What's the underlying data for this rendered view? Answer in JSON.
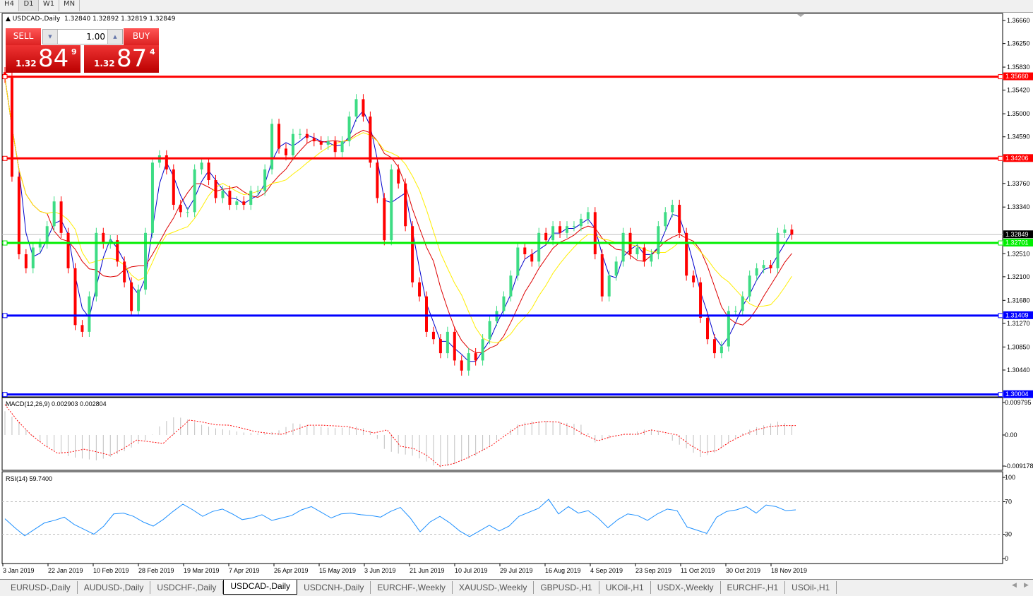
{
  "toolbar": {
    "timeframes": [
      "H4",
      "D1",
      "W1",
      "MN"
    ],
    "active": "D1"
  },
  "header": {
    "symbol": "USDCAD-,Daily",
    "ohlc": "1.32840 1.32892 1.32819 1.32849"
  },
  "trade_panel": {
    "sell_label": "SELL",
    "buy_label": "BUY",
    "lot": "1.00",
    "sell_price": {
      "prefix": "1.32",
      "big": "84",
      "sup": "9"
    },
    "buy_price": {
      "prefix": "1.32",
      "big": "87",
      "sup": "4"
    }
  },
  "colors": {
    "bull": "#3ddc84",
    "bear": "#ff0000",
    "ma_fast": "#0000cc",
    "ma_mid": "#dd0000",
    "ma_slow": "#ffee00",
    "rsi": "#1e90ff",
    "macd_hist": "#c0c0c0",
    "macd_signal": "#ff0000"
  },
  "chart_data": [
    {
      "type": "candlestick",
      "title": "USDCAD-,Daily",
      "ylim": [
        1.298,
        1.3675
      ],
      "y_ticks": [
        "1.36660",
        "1.36250",
        "1.35830",
        "1.35420",
        "1.35000",
        "1.34590",
        "1.33760",
        "1.33340",
        "1.32510",
        "1.32100",
        "1.31680",
        "1.31270",
        "1.30850",
        "1.30440"
      ],
      "x_ticks": [
        "3 Jan 2019",
        "22 Jan 2019",
        "10 Feb 2019",
        "28 Feb 2019",
        "19 Mar 2019",
        "7 Apr 2019",
        "26 Apr 2019",
        "15 May 2019",
        "3 Jun 2019",
        "21 Jun 2019",
        "10 Jul 2019",
        "29 Jul 2019",
        "16 Aug 2019",
        "4 Sep 2019",
        "23 Sep 2019",
        "11 Oct 2019",
        "30 Oct 2019",
        "18 Nov 2019"
      ],
      "closes": [
        1.3564,
        1.3388,
        1.325,
        1.3225,
        1.3262,
        1.3269,
        1.33,
        1.3344,
        1.3288,
        1.3225,
        1.3124,
        1.3112,
        1.3175,
        1.3288,
        1.3269,
        1.3275,
        1.3237,
        1.32,
        1.3149,
        1.3187,
        1.3288,
        1.3413,
        1.3426,
        1.3401,
        1.3338,
        1.3325,
        1.3325,
        1.3401,
        1.3413,
        1.3382,
        1.335,
        1.3363,
        1.3338,
        1.3344,
        1.3338,
        1.3363,
        1.3363,
        1.3401,
        1.3482,
        1.3438,
        1.3426,
        1.3464,
        1.3464,
        1.3457,
        1.3451,
        1.3445,
        1.3451,
        1.3432,
        1.3451,
        1.3495,
        1.3526,
        1.3495,
        1.3413,
        1.335,
        1.3275,
        1.3401,
        1.3376,
        1.33,
        1.32,
        1.3175,
        1.3112,
        1.3099,
        1.3074,
        1.3112,
        1.3061,
        1.3043,
        1.3074,
        1.3061,
        1.3099,
        1.3131,
        1.3149,
        1.3175,
        1.3212,
        1.3262,
        1.325,
        1.3237,
        1.3288,
        1.3275,
        1.33,
        1.3288,
        1.33,
        1.33,
        1.3313,
        1.3325,
        1.325,
        1.3175,
        1.3212,
        1.3237,
        1.3288,
        1.325,
        1.3262,
        1.3237,
        1.325,
        1.33,
        1.3325,
        1.3338,
        1.3288,
        1.3212,
        1.32,
        1.3137,
        1.3099,
        1.3074,
        1.3086,
        1.3149,
        1.3149,
        1.3175,
        1.3212,
        1.3225,
        1.3231,
        1.3225,
        1.3288,
        1.3294,
        1.32849
      ],
      "hlines": [
        {
          "value": "1.35660",
          "color": "#ff0000"
        },
        {
          "value": "1.34206",
          "color": "#ff0000"
        },
        {
          "value": "1.32701",
          "color": "#00ee00"
        },
        {
          "value": "1.31409",
          "color": "#0000ff"
        },
        {
          "value": "1.30004",
          "color": "#0000ff"
        }
      ],
      "current_price": "1.32849"
    },
    {
      "type": "bar",
      "title": "MACD(12,26,9) 0.002903 0.002804",
      "ylim": [
        -0.009178,
        0.009795
      ],
      "y_ticks": [
        "0.009795",
        "0.00",
        "-0.009178"
      ],
      "histogram": [
        0.007,
        0.004,
        0.0,
        -0.003,
        -0.005,
        -0.0065,
        -0.007,
        -0.0075,
        -0.0065,
        -0.005,
        -0.003,
        -0.001,
        0.0035,
        0.0055,
        0.0045,
        0.003,
        0.002,
        0.0015,
        0.0008,
        0.0005,
        0.0005,
        0.0015,
        0.0035,
        0.003,
        0.0025,
        0.002,
        0.0022,
        0.0025,
        0.001,
        -0.0045,
        -0.0055,
        -0.006,
        -0.0075,
        -0.0097,
        -0.009,
        -0.0075,
        -0.006,
        -0.003,
        0.0,
        0.003,
        0.004,
        0.0042,
        0.004,
        0.0035,
        0.003,
        -0.0022,
        -0.001,
        0.0,
        0.0008,
        0.0018,
        0.0012,
        -0.002,
        -0.004,
        -0.0065,
        -0.0055,
        -0.003,
        0.0,
        0.002,
        0.003,
        0.004,
        0.0029
      ],
      "signal": [
        0.009,
        0.004,
        0.0,
        -0.003,
        -0.0054,
        -0.005,
        -0.0042,
        -0.005,
        -0.006,
        -0.004,
        -0.0015,
        -0.002,
        -0.0025,
        0.001,
        0.0044,
        0.0038,
        0.003,
        0.0029,
        0.002,
        0.001,
        0.0005,
        0.0002,
        0.0015,
        0.0029,
        0.0029,
        0.0027,
        0.0025,
        0.0015,
        0.0006,
        0.0015,
        -0.0033,
        -0.004,
        -0.006,
        -0.0092,
        -0.0085,
        -0.0069,
        -0.005,
        -0.0029,
        0.0,
        0.0027,
        0.0035,
        0.004,
        0.0038,
        0.0023,
        0.0,
        -0.0017,
        -0.0005,
        0.0002,
        0.0002,
        0.0015,
        0.0008,
        0.0,
        -0.003,
        -0.0052,
        -0.0046,
        -0.002,
        0.0,
        0.0015,
        0.0025,
        0.0028,
        0.0028
      ]
    },
    {
      "type": "line",
      "title": "RSI(14) 59.7400",
      "ylim": [
        0,
        100
      ],
      "y_ticks": [
        "100",
        "70",
        "30",
        "0"
      ],
      "levels": [
        70,
        30
      ],
      "values": [
        49,
        38,
        28,
        36,
        44,
        47,
        51,
        42,
        36,
        30,
        40,
        55,
        56,
        52,
        45,
        40,
        48,
        58,
        67,
        60,
        52,
        58,
        61,
        55,
        48,
        50,
        54,
        47,
        50,
        53,
        60,
        64,
        57,
        50,
        55,
        56,
        54,
        53,
        51,
        58,
        63,
        50,
        33,
        45,
        52,
        44,
        34,
        27,
        34,
        41,
        34,
        40,
        52,
        57,
        62,
        73,
        55,
        64,
        56,
        59,
        50,
        38,
        48,
        55,
        53,
        47,
        55,
        61,
        59,
        39,
        35,
        31,
        51,
        58,
        60,
        64,
        56,
        66,
        64,
        59,
        60
      ]
    }
  ],
  "tabs": {
    "items": [
      "EURUSD-,Daily",
      "AUDUSD-,Daily",
      "USDCHF-,Daily",
      "USDCAD-,Daily",
      "USDCNH-,Daily",
      "EURCHF-,Weekly",
      "XAUUSD-,Weekly",
      "GBPUSD-,H1",
      "UKOil-,H1",
      "USDX-,Weekly",
      "EURCHF-,H1",
      "USOil-,H1"
    ],
    "active": "USDCAD-,Daily"
  }
}
